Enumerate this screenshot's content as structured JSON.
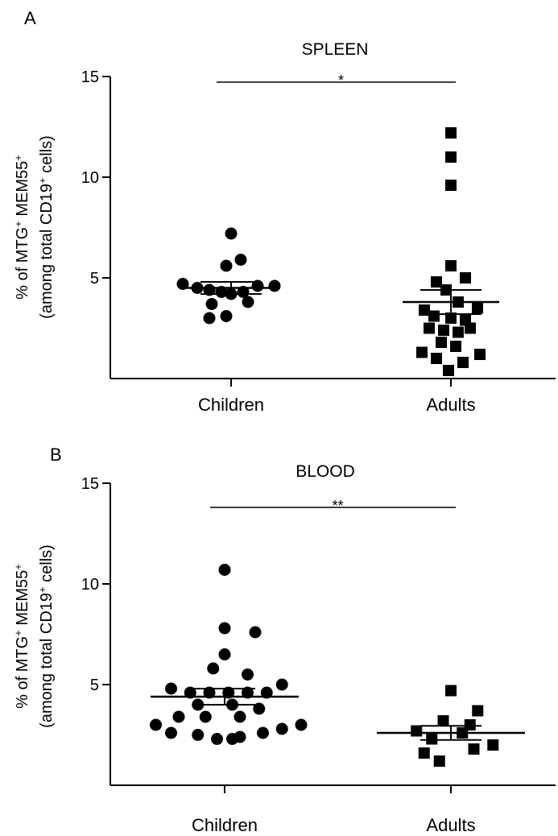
{
  "chart_data": [
    {
      "type": "scatter",
      "panel_label": "A",
      "title": "SPLEEN",
      "ylabel": {
        "line1_prefix": "% of MTG",
        "line1_sup1": "+",
        "line1_mid": " MEM55",
        "line1_sup2": "+",
        "line2_prefix": "(among total CD19",
        "line2_sup": "+",
        "line2_suffix": " cells)"
      },
      "categories": [
        "Children",
        "Adults"
      ],
      "ylim": [
        0,
        15
      ],
      "yticks": [
        5,
        10,
        15
      ],
      "significance": {
        "label": "*",
        "from": "Children",
        "to": "Adults"
      },
      "series": [
        {
          "category": "Children",
          "marker": "circle",
          "mean": 4.5,
          "sem": 0.3,
          "points": [
            {
              "offset": -1.0,
              "y": 4.7
            },
            {
              "offset": -0.7,
              "y": 4.5
            },
            {
              "offset": -0.45,
              "y": 4.4
            },
            {
              "offset": -0.2,
              "y": 4.3
            },
            {
              "offset": 0.0,
              "y": 4.2
            },
            {
              "offset": 0.25,
              "y": 4.3
            },
            {
              "offset": 0.55,
              "y": 4.6
            },
            {
              "offset": 0.9,
              "y": 4.6
            },
            {
              "offset": -0.4,
              "y": 3.7
            },
            {
              "offset": 0.35,
              "y": 3.8
            },
            {
              "offset": -0.45,
              "y": 3.0
            },
            {
              "offset": -0.1,
              "y": 3.1
            },
            {
              "offset": -0.1,
              "y": 5.6
            },
            {
              "offset": 0.2,
              "y": 5.9
            },
            {
              "offset": 0.0,
              "y": 7.2
            }
          ]
        },
        {
          "category": "Adults",
          "marker": "square",
          "mean": 3.8,
          "sem": 0.6,
          "points": [
            {
              "offset": 0.0,
              "y": 12.2
            },
            {
              "offset": 0.0,
              "y": 11.0
            },
            {
              "offset": 0.0,
              "y": 9.6
            },
            {
              "offset": 0.0,
              "y": 5.6
            },
            {
              "offset": -0.3,
              "y": 4.8
            },
            {
              "offset": 0.3,
              "y": 5.0
            },
            {
              "offset": -0.1,
              "y": 4.4
            },
            {
              "offset": 0.15,
              "y": 3.8
            },
            {
              "offset": -0.55,
              "y": 3.4
            },
            {
              "offset": 0.55,
              "y": 3.5
            },
            {
              "offset": -0.35,
              "y": 3.1
            },
            {
              "offset": 0.0,
              "y": 3.0
            },
            {
              "offset": 0.3,
              "y": 2.9
            },
            {
              "offset": -0.45,
              "y": 2.5
            },
            {
              "offset": -0.15,
              "y": 2.4
            },
            {
              "offset": 0.15,
              "y": 2.3
            },
            {
              "offset": 0.4,
              "y": 2.5
            },
            {
              "offset": -0.6,
              "y": 1.3
            },
            {
              "offset": -0.2,
              "y": 1.8
            },
            {
              "offset": 0.1,
              "y": 1.6
            },
            {
              "offset": 0.6,
              "y": 1.2
            },
            {
              "offset": -0.3,
              "y": 1.0
            },
            {
              "offset": 0.25,
              "y": 0.8
            },
            {
              "offset": -0.05,
              "y": 0.4
            }
          ]
        }
      ]
    },
    {
      "type": "scatter",
      "panel_label": "B",
      "title": "BLOOD",
      "ylabel": {
        "line1_prefix": "% of MTG",
        "line1_sup1": "+",
        "line1_mid": " MEM55",
        "line1_sup2": "+",
        "line2_prefix": "(among total CD19",
        "line2_sup": "+",
        "line2_suffix": " cells)"
      },
      "categories": [
        "Children",
        "Adults"
      ],
      "ylim": [
        0,
        15
      ],
      "yticks": [
        5,
        10,
        15
      ],
      "significance": {
        "label": "**",
        "from": "Children",
        "to": "Adults"
      },
      "series": [
        {
          "category": "Children",
          "marker": "circle",
          "mean": 4.4,
          "sem": 0.4,
          "points": [
            {
              "offset": 0.0,
              "y": 10.7
            },
            {
              "offset": 0.0,
              "y": 7.8
            },
            {
              "offset": 0.4,
              "y": 7.6
            },
            {
              "offset": 0.0,
              "y": 6.5
            },
            {
              "offset": -0.15,
              "y": 5.8
            },
            {
              "offset": 0.3,
              "y": 5.5
            },
            {
              "offset": 0.75,
              "y": 5.0
            },
            {
              "offset": -0.7,
              "y": 4.8
            },
            {
              "offset": -0.45,
              "y": 4.6
            },
            {
              "offset": -0.2,
              "y": 4.6
            },
            {
              "offset": 0.05,
              "y": 4.6
            },
            {
              "offset": 0.3,
              "y": 4.6
            },
            {
              "offset": 0.55,
              "y": 4.6
            },
            {
              "offset": -0.35,
              "y": 4.0
            },
            {
              "offset": 0.1,
              "y": 4.0
            },
            {
              "offset": 0.45,
              "y": 3.8
            },
            {
              "offset": -0.6,
              "y": 3.4
            },
            {
              "offset": -0.25,
              "y": 3.4
            },
            {
              "offset": 0.2,
              "y": 3.4
            },
            {
              "offset": -0.9,
              "y": 3.0
            },
            {
              "offset": 1.0,
              "y": 3.0
            },
            {
              "offset": 0.75,
              "y": 2.8
            },
            {
              "offset": -0.7,
              "y": 2.6
            },
            {
              "offset": 0.5,
              "y": 2.6
            },
            {
              "offset": -0.35,
              "y": 2.5
            },
            {
              "offset": 0.2,
              "y": 2.4
            },
            {
              "offset": -0.1,
              "y": 2.3
            },
            {
              "offset": 0.1,
              "y": 2.3
            }
          ]
        },
        {
          "category": "Adults",
          "marker": "square",
          "mean": 2.6,
          "sem": 0.35,
          "points": [
            {
              "offset": 0.0,
              "y": 4.7
            },
            {
              "offset": 0.35,
              "y": 3.7
            },
            {
              "offset": -0.1,
              "y": 3.2
            },
            {
              "offset": 0.25,
              "y": 3.0
            },
            {
              "offset": -0.45,
              "y": 2.7
            },
            {
              "offset": 0.15,
              "y": 2.6
            },
            {
              "offset": -0.25,
              "y": 2.3
            },
            {
              "offset": 0.55,
              "y": 2.0
            },
            {
              "offset": 0.3,
              "y": 1.8
            },
            {
              "offset": -0.35,
              "y": 1.6
            },
            {
              "offset": -0.15,
              "y": 1.2
            }
          ]
        }
      ]
    }
  ]
}
